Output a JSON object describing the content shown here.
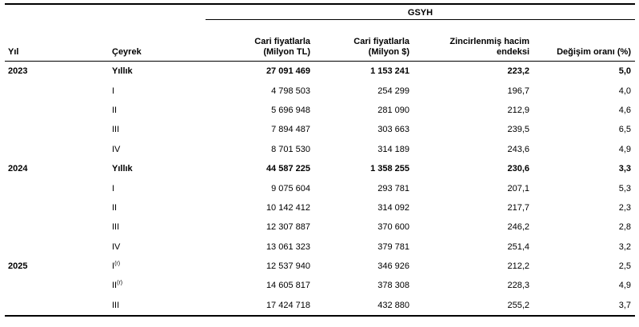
{
  "table": {
    "group_header": "GSYH",
    "columns": {
      "year": "Yıl",
      "quarter": "Çeyrek",
      "tl_line1": "Cari fiyatlarla",
      "tl_line2": "(Milyon TL)",
      "usd_line1": "Cari fiyatlarla",
      "usd_line2": "(Milyon $)",
      "index_line1": "Zincirlenmiş hacim",
      "index_line2": "endeksi",
      "rate": "Değişim oranı (%)"
    },
    "rows": [
      {
        "year": "2023",
        "quarter": "Yıllık",
        "tl": "27 091 469",
        "usd": "1 153 241",
        "index": "223,2",
        "rate": "5,0"
      },
      {
        "quarter": "I",
        "tl": "4 798 503",
        "usd": "254 299",
        "index": "196,7",
        "rate": "4,0"
      },
      {
        "quarter": "II",
        "tl": "5 696 948",
        "usd": "281 090",
        "index": "212,9",
        "rate": "4,6"
      },
      {
        "quarter": "III",
        "tl": "7 894 487",
        "usd": "303 663",
        "index": "239,5",
        "rate": "6,5"
      },
      {
        "quarter": "IV",
        "tl": "8 701 530",
        "usd": "314 189",
        "index": "243,6",
        "rate": "4,9"
      },
      {
        "year": "2024",
        "quarter": "Yıllık",
        "tl": "44 587 225",
        "usd": "1 358 255",
        "index": "230,6",
        "rate": "3,3"
      },
      {
        "quarter": "I",
        "tl": "9 075 604",
        "usd": "293 781",
        "index": "207,1",
        "rate": "5,3"
      },
      {
        "quarter": "II",
        "tl": "10 142 412",
        "usd": "314 092",
        "index": "217,7",
        "rate": "2,3"
      },
      {
        "quarter": "III",
        "tl": "12 307 887",
        "usd": "370 600",
        "index": "246,2",
        "rate": "2,8"
      },
      {
        "quarter": "IV",
        "tl": "13 061 323",
        "usd": "379 781",
        "index": "251,4",
        "rate": "3,2"
      },
      {
        "year": "2025",
        "quarter": "I",
        "quarter_sup": "(r)",
        "tl": "12 537 940",
        "usd": "346 926",
        "index": "212,2",
        "rate": "2,5"
      },
      {
        "quarter": "II",
        "quarter_sup": "(r)",
        "tl": "14 605 817",
        "usd": "378 308",
        "index": "228,3",
        "rate": "4,9"
      },
      {
        "quarter": "III",
        "tl": "17 424 718",
        "usd": "432 880",
        "index": "255,2",
        "rate": "3,7"
      }
    ]
  }
}
